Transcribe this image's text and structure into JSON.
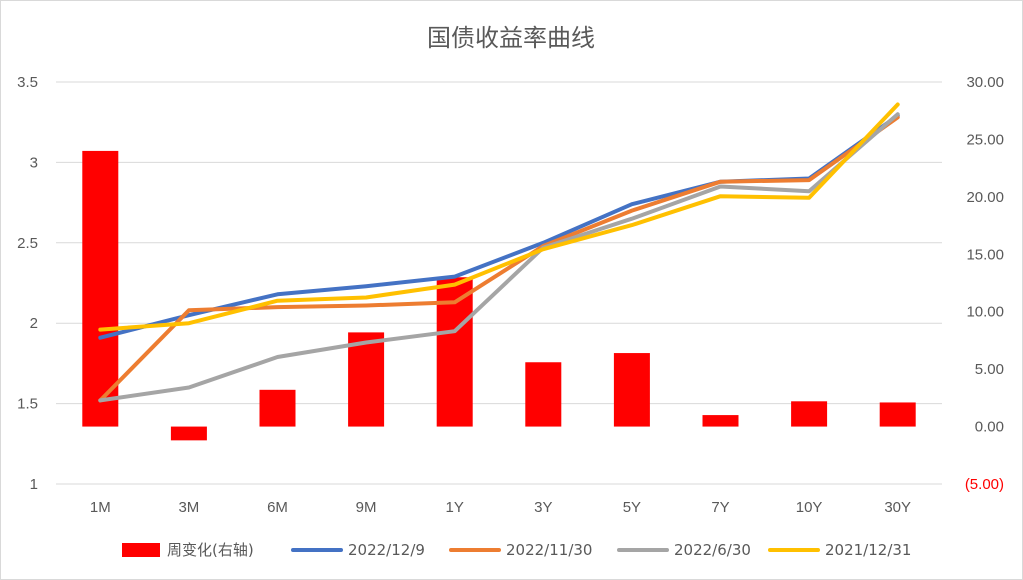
{
  "chart_data": {
    "type": "bar+line",
    "title": "国债收益率曲线",
    "categories": [
      "1M",
      "3M",
      "6M",
      "9M",
      "1Y",
      "3Y",
      "5Y",
      "7Y",
      "10Y",
      "30Y"
    ],
    "y_left": {
      "range": [
        1,
        3.5
      ],
      "ticks": [
        1,
        1.5,
        2,
        2.5,
        3,
        3.5
      ],
      "tick_labels": [
        "1",
        "1.5",
        "2",
        "2.5",
        "3",
        "3.5"
      ]
    },
    "y_right": {
      "range": [
        -5,
        30
      ],
      "ticks": [
        -5,
        0,
        5,
        10,
        15,
        20,
        25,
        30
      ],
      "tick_labels": [
        "(5.00)",
        "0.00",
        "5.00",
        "10.00",
        "15.00",
        "20.00",
        "25.00",
        "30.00"
      ]
    },
    "grid": true,
    "legend_position": "bottom",
    "bar_series": {
      "name": "周变化(右轴)",
      "axis": "right",
      "color": "#ff0000",
      "values": [
        24.0,
        -1.2,
        3.2,
        8.2,
        13.0,
        5.6,
        6.4,
        1.0,
        2.2,
        2.1
      ]
    },
    "series": [
      {
        "name": "2022/12/9",
        "color": "#4472c4",
        "values": [
          1.91,
          2.05,
          2.18,
          2.23,
          2.29,
          2.5,
          2.74,
          2.88,
          2.9,
          3.29
        ]
      },
      {
        "name": "2022/11/30",
        "color": "#ed7d31",
        "values": [
          1.52,
          2.08,
          2.1,
          2.11,
          2.13,
          2.48,
          2.7,
          2.88,
          2.89,
          3.28
        ]
      },
      {
        "name": "2022/6/30",
        "color": "#a5a5a5",
        "values": [
          1.52,
          1.6,
          1.79,
          1.88,
          1.95,
          2.47,
          2.65,
          2.85,
          2.82,
          3.3
        ]
      },
      {
        "name": "2021/12/31",
        "color": "#ffc000",
        "values": [
          1.96,
          2.0,
          2.14,
          2.16,
          2.24,
          2.46,
          2.61,
          2.79,
          2.78,
          3.36
        ]
      }
    ]
  }
}
